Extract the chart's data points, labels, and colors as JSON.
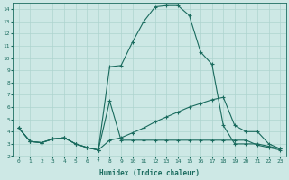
{
  "xlabel": "Humidex (Indice chaleur)",
  "bg_color": "#cde8e5",
  "line_color": "#1a6b5e",
  "grid_color": "#aed4cf",
  "xlim": [
    -0.5,
    23.5
  ],
  "ylim": [
    2,
    14.5
  ],
  "xticks": [
    0,
    1,
    2,
    3,
    4,
    5,
    6,
    7,
    8,
    9,
    10,
    11,
    12,
    13,
    14,
    15,
    16,
    17,
    18,
    19,
    20,
    21,
    22,
    23
  ],
  "yticks": [
    2,
    3,
    4,
    5,
    6,
    7,
    8,
    9,
    10,
    11,
    12,
    13,
    14
  ],
  "line1_x": [
    0,
    1,
    2,
    3,
    4,
    5,
    6,
    7,
    8,
    9,
    10,
    11,
    12,
    13,
    14,
    15,
    16,
    17,
    18,
    19,
    20,
    21,
    22,
    23
  ],
  "line1_y": [
    4.3,
    3.2,
    3.1,
    3.4,
    3.5,
    3.0,
    2.7,
    2.5,
    9.3,
    9.4,
    11.3,
    13.0,
    14.2,
    14.3,
    14.3,
    13.5,
    10.5,
    9.5,
    4.5,
    3.0,
    3.0,
    3.0,
    2.8,
    2.6
  ],
  "line2_x": [
    0,
    1,
    2,
    3,
    4,
    5,
    6,
    7,
    8,
    9,
    10,
    11,
    12,
    13,
    14,
    15,
    16,
    17,
    18,
    19,
    20,
    21,
    22,
    23
  ],
  "line2_y": [
    4.3,
    3.2,
    3.1,
    3.4,
    3.5,
    3.0,
    2.7,
    2.5,
    3.3,
    3.5,
    3.9,
    4.3,
    4.8,
    5.2,
    5.6,
    6.0,
    6.3,
    6.6,
    6.8,
    4.5,
    4.0,
    4.0,
    3.0,
    2.6
  ],
  "line3_x": [
    0,
    1,
    2,
    3,
    4,
    5,
    6,
    7,
    8,
    9,
    10,
    11,
    12,
    13,
    14,
    15,
    16,
    17,
    18,
    19,
    20,
    21,
    22,
    23
  ],
  "line3_y": [
    4.3,
    3.2,
    3.1,
    3.4,
    3.5,
    3.0,
    2.7,
    2.5,
    6.5,
    3.3,
    3.3,
    3.3,
    3.3,
    3.3,
    3.3,
    3.3,
    3.3,
    3.3,
    3.3,
    3.3,
    3.3,
    2.9,
    2.7,
    2.5
  ]
}
